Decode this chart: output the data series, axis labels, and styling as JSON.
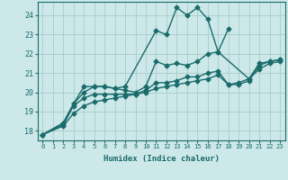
{
  "xlabel": "Humidex (Indice chaleur)",
  "ylabel": "",
  "background_color": "#cce8e8",
  "grid_color": "#aacccc",
  "line_color": "#1a6b6b",
  "xlim": [
    -0.5,
    23.5
  ],
  "ylim": [
    17.5,
    24.7
  ],
  "yticks": [
    18,
    19,
    20,
    21,
    22,
    23,
    24
  ],
  "xticks": [
    0,
    1,
    2,
    3,
    4,
    5,
    6,
    7,
    8,
    9,
    10,
    11,
    12,
    13,
    14,
    15,
    16,
    17,
    18,
    19,
    20,
    21,
    22,
    23
  ],
  "series": [
    {
      "x": [
        0,
        2,
        3,
        4,
        5,
        6,
        7,
        8,
        11,
        12,
        13,
        14,
        15,
        16,
        17,
        18
      ],
      "y": [
        17.8,
        18.4,
        19.4,
        20.3,
        20.3,
        20.3,
        20.2,
        20.3,
        23.2,
        23.0,
        24.4,
        24.0,
        24.4,
        23.8,
        22.1,
        23.3
      ],
      "marker": "D",
      "markersize": 2.5,
      "linewidth": 1.0
    },
    {
      "x": [
        0,
        2,
        3,
        4,
        5,
        6,
        7,
        8,
        9,
        10,
        11,
        12,
        13,
        14,
        15,
        16,
        17,
        20,
        21,
        22,
        23
      ],
      "y": [
        17.8,
        18.4,
        19.4,
        20.0,
        20.3,
        20.3,
        20.2,
        20.1,
        20.0,
        20.3,
        21.6,
        21.4,
        21.5,
        21.4,
        21.6,
        22.0,
        22.1,
        20.7,
        21.5,
        21.6,
        21.7
      ],
      "marker": "D",
      "markersize": 2.5,
      "linewidth": 1.0
    },
    {
      "x": [
        0,
        2,
        3,
        4,
        5,
        6,
        7,
        8,
        9,
        10,
        11,
        12,
        13,
        14,
        15,
        16,
        17,
        18,
        19,
        20,
        21,
        22,
        23
      ],
      "y": [
        17.8,
        18.3,
        19.3,
        19.7,
        19.9,
        19.9,
        19.9,
        19.9,
        19.9,
        20.1,
        20.5,
        20.5,
        20.6,
        20.8,
        20.8,
        21.0,
        21.1,
        20.4,
        20.4,
        20.6,
        21.4,
        21.6,
        21.7
      ],
      "marker": "D",
      "markersize": 2.5,
      "linewidth": 1.0
    },
    {
      "x": [
        0,
        2,
        3,
        4,
        5,
        6,
        7,
        8,
        9,
        10,
        11,
        12,
        13,
        14,
        15,
        16,
        17,
        18,
        19,
        20,
        21,
        22,
        23
      ],
      "y": [
        17.8,
        18.25,
        18.9,
        19.3,
        19.5,
        19.6,
        19.7,
        19.8,
        19.9,
        20.0,
        20.2,
        20.3,
        20.4,
        20.5,
        20.6,
        20.7,
        20.9,
        20.4,
        20.5,
        20.7,
        21.2,
        21.5,
        21.6
      ],
      "marker": "D",
      "markersize": 2.5,
      "linewidth": 1.0
    }
  ]
}
